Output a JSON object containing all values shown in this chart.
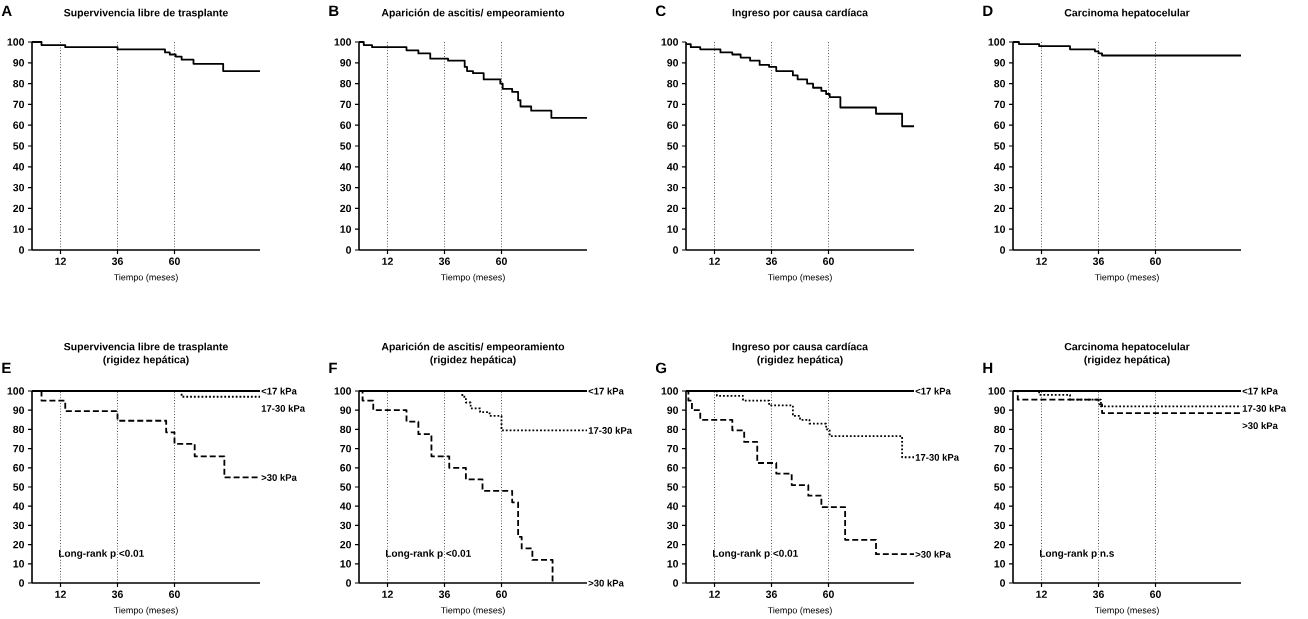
{
  "chart_data": [
    {
      "type": "step",
      "title": "Supervivencia libre de trasplante",
      "xlabel": "Tiempo (meses)",
      "annotations": [
        "A"
      ],
      "xlim": [
        0,
        96
      ],
      "ylim": [
        0,
        100
      ],
      "xticks": [
        12,
        36,
        60
      ],
      "yticks": [
        0,
        10,
        20,
        30,
        40,
        50,
        60,
        70,
        80,
        90,
        100
      ],
      "ref_lines": [
        {
          "axis": "x",
          "value": 12,
          "line_style": "dotted"
        },
        {
          "axis": "x",
          "value": 36,
          "line_style": "dotted"
        },
        {
          "axis": "x",
          "value": 60,
          "line_style": "dotted"
        }
      ],
      "series": [
        {
          "color": "#000000",
          "line_style": "solid",
          "x": [
            0,
            4,
            14,
            36,
            56,
            58,
            60.5,
            63,
            68,
            80.5,
            96
          ],
          "values": [
            100,
            98.5,
            97.5,
            96.5,
            95,
            94,
            93,
            91.5,
            89.5,
            86,
            86
          ]
        }
      ]
    },
    {
      "type": "step",
      "title": "Aparición de ascitis/ empeoramiento",
      "xlabel": "Tiempo (meses)",
      "annotations": [
        "B"
      ],
      "xlim": [
        0,
        96
      ],
      "ylim": [
        0,
        100
      ],
      "xticks": [
        12,
        36,
        60
      ],
      "yticks": [
        0,
        10,
        20,
        30,
        40,
        50,
        60,
        70,
        80,
        90,
        100
      ],
      "ref_lines": [
        {
          "axis": "x",
          "value": 12,
          "line_style": "dotted"
        },
        {
          "axis": "x",
          "value": 36,
          "line_style": "dotted"
        },
        {
          "axis": "x",
          "value": 60,
          "line_style": "dotted"
        }
      ],
      "series": [
        {
          "color": "#000000",
          "line_style": "solid",
          "x": [
            0,
            2,
            5.5,
            20,
            25,
            30,
            37.5,
            44.5,
            45.5,
            48,
            52.5,
            59.5,
            60.5,
            64.5,
            67,
            68,
            72.5,
            81,
            96
          ],
          "values": [
            100,
            98.5,
            97.5,
            96,
            94.5,
            92,
            91,
            88,
            86,
            85,
            82,
            80,
            77.5,
            76,
            72,
            69,
            67,
            63.5,
            63.5
          ]
        }
      ]
    },
    {
      "type": "step",
      "title": "Ingreso por causa cardíaca",
      "xlabel": "Tiempo (meses)",
      "annotations": [
        "C"
      ],
      "xlim": [
        0,
        96
      ],
      "ylim": [
        0,
        100
      ],
      "xticks": [
        12,
        36,
        60
      ],
      "yticks": [
        0,
        10,
        20,
        30,
        40,
        50,
        60,
        70,
        80,
        90,
        100
      ],
      "ref_lines": [
        {
          "axis": "x",
          "value": 12,
          "line_style": "dotted"
        },
        {
          "axis": "x",
          "value": 36,
          "line_style": "dotted"
        },
        {
          "axis": "x",
          "value": 60,
          "line_style": "dotted"
        }
      ],
      "series": [
        {
          "color": "#000000",
          "line_style": "solid",
          "x": [
            0,
            2,
            6,
            14.5,
            19.5,
            23,
            27,
            31,
            35,
            38,
            45,
            47,
            51,
            53.5,
            57,
            59,
            60.5,
            65,
            80,
            91,
            96
          ],
          "values": [
            99,
            97.5,
            96.5,
            95,
            94,
            92.5,
            91,
            89,
            88,
            86,
            84,
            82,
            80,
            78,
            76.5,
            75,
            73.5,
            68.5,
            65.5,
            59.5,
            59.5
          ]
        }
      ]
    },
    {
      "type": "step",
      "title": "Carcinoma hepatocelular",
      "xlabel": "Tiempo (meses)",
      "annotations": [
        "D"
      ],
      "xlim": [
        0,
        96
      ],
      "ylim": [
        0,
        100
      ],
      "xticks": [
        12,
        36,
        60
      ],
      "yticks": [
        0,
        10,
        20,
        30,
        40,
        50,
        60,
        70,
        80,
        90,
        100
      ],
      "ref_lines": [
        {
          "axis": "x",
          "value": 12,
          "line_style": "dotted"
        },
        {
          "axis": "x",
          "value": 36,
          "line_style": "dotted"
        },
        {
          "axis": "x",
          "value": 60,
          "line_style": "dotted"
        }
      ],
      "series": [
        {
          "color": "#000000",
          "line_style": "solid",
          "x": [
            0,
            2.5,
            11,
            24,
            34.5,
            36,
            37.5,
            96
          ],
          "values": [
            100,
            99,
            98,
            96.5,
            95.5,
            94.5,
            93.5,
            93.5
          ]
        }
      ]
    },
    {
      "type": "step",
      "title": "Supervivencia libre de trasplante",
      "subtitle": "(rigidez hepática)",
      "xlabel": "Tiempo (meses)",
      "annotations": [
        "E",
        "Long-rank p <0.01"
      ],
      "xlim": [
        0,
        96
      ],
      "ylim": [
        0,
        100
      ],
      "xticks": [
        12,
        36,
        60
      ],
      "yticks": [
        0,
        10,
        20,
        30,
        40,
        50,
        60,
        70,
        80,
        90,
        100
      ],
      "ref_lines": [
        {
          "axis": "x",
          "value": 12,
          "line_style": "dotted"
        },
        {
          "axis": "x",
          "value": 36,
          "line_style": "dotted"
        },
        {
          "axis": "x",
          "value": 60,
          "line_style": "dotted"
        }
      ],
      "series": [
        {
          "name": "<17 kPa",
          "color": "#000000",
          "line_style": "solid",
          "x": [
            0,
            96
          ],
          "values": [
            100,
            100
          ]
        },
        {
          "name": "17-30 kPa",
          "color": "#000000",
          "line_style": "dotted",
          "x": [
            61,
            63,
            96
          ],
          "values": [
            100,
            97,
            97
          ]
        },
        {
          "name": ">30 kPa",
          "color": "#000000",
          "line_style": "dashed",
          "x": [
            0,
            4,
            14,
            36,
            56.5,
            60,
            68.5,
            81,
            96
          ],
          "values": [
            100,
            95,
            89.5,
            84.5,
            78.5,
            72.5,
            66,
            55,
            55
          ]
        }
      ]
    },
    {
      "type": "step",
      "title": "Aparición de ascitis/ empeoramiento",
      "subtitle": "(rigidez hepática)",
      "xlabel": "Tiempo (meses)",
      "annotations": [
        "F",
        "Long-rank p <0.01"
      ],
      "xlim": [
        0,
        96
      ],
      "ylim": [
        0,
        100
      ],
      "xticks": [
        12,
        36,
        60
      ],
      "yticks": [
        0,
        10,
        20,
        30,
        40,
        50,
        60,
        70,
        80,
        90,
        100
      ],
      "ref_lines": [
        {
          "axis": "x",
          "value": 12,
          "line_style": "dotted"
        },
        {
          "axis": "x",
          "value": 36,
          "line_style": "dotted"
        },
        {
          "axis": "x",
          "value": 60,
          "line_style": "dotted"
        }
      ],
      "series": [
        {
          "name": "<17 kPa",
          "color": "#000000",
          "line_style": "solid",
          "x": [
            0,
            96
          ],
          "values": [
            100,
            100
          ]
        },
        {
          "name": "17-30 kPa",
          "color": "#000000",
          "line_style": "dotted",
          "x": [
            0,
            43.5,
            45,
            47,
            51,
            55,
            60,
            96
          ],
          "values": [
            100,
            97,
            94,
            91,
            89,
            87,
            79.5,
            79.5
          ]
        },
        {
          "name": ">30 kPa",
          "color": "#000000",
          "line_style": "dashed",
          "x": [
            0,
            1.5,
            6,
            20,
            25,
            30.5,
            38,
            45,
            52,
            64.5,
            67,
            68.5,
            73,
            81.5
          ],
          "values": [
            100,
            95,
            90,
            84,
            77.5,
            66,
            60,
            54,
            48,
            42,
            24,
            18,
            12,
            0
          ]
        }
      ]
    },
    {
      "type": "step",
      "title": "Ingreso por causa cardíaca",
      "subtitle": "(rigidez hepática)",
      "xlabel": "Tiempo (meses)",
      "annotations": [
        "G",
        "Long-rank p <0.01"
      ],
      "xlim": [
        0,
        96
      ],
      "ylim": [
        0,
        100
      ],
      "xticks": [
        12,
        36,
        60
      ],
      "yticks": [
        0,
        10,
        20,
        30,
        40,
        50,
        60,
        70,
        80,
        90,
        100
      ],
      "ref_lines": [
        {
          "axis": "x",
          "value": 12,
          "line_style": "dotted"
        },
        {
          "axis": "x",
          "value": 36,
          "line_style": "dotted"
        },
        {
          "axis": "x",
          "value": 60,
          "line_style": "dotted"
        }
      ],
      "series": [
        {
          "name": "<17 kPa",
          "color": "#000000",
          "line_style": "solid",
          "x": [
            0,
            96
          ],
          "values": [
            100,
            100
          ]
        },
        {
          "name": "17-30 kPa",
          "color": "#000000",
          "line_style": "dotted",
          "x": [
            0,
            13,
            24,
            35,
            45,
            48,
            52,
            59,
            60.5,
            91,
            96
          ],
          "values": [
            100,
            97.5,
            95,
            92.5,
            87,
            85,
            83,
            80,
            76.5,
            65.5,
            65.5
          ]
        },
        {
          "name": ">30 kPa",
          "color": "#000000",
          "line_style": "dashed",
          "x": [
            0,
            1,
            2.5,
            6,
            19.5,
            24.5,
            30,
            38,
            44.5,
            51.5,
            57,
            67,
            80,
            96
          ],
          "values": [
            100,
            95,
            90,
            85,
            79.5,
            73.5,
            62.5,
            57,
            51,
            45.5,
            39.5,
            22.5,
            15,
            15
          ]
        }
      ]
    },
    {
      "type": "step",
      "title": "Carcinoma hepatocelular",
      "subtitle": "(rigidez hepática)",
      "xlabel": "Tiempo (meses)",
      "annotations": [
        "H",
        "Long-rank p n.s"
      ],
      "xlim": [
        0,
        96
      ],
      "ylim": [
        0,
        100
      ],
      "xticks": [
        12,
        36,
        60
      ],
      "yticks": [
        0,
        10,
        20,
        30,
        40,
        50,
        60,
        70,
        80,
        90,
        100
      ],
      "ref_lines": [
        {
          "axis": "x",
          "value": 12,
          "line_style": "dotted"
        },
        {
          "axis": "x",
          "value": 36,
          "line_style": "dotted"
        },
        {
          "axis": "x",
          "value": 60,
          "line_style": "dotted"
        }
      ],
      "series": [
        {
          "name": "<17 kPa",
          "color": "#000000",
          "line_style": "solid",
          "x": [
            0,
            96
          ],
          "values": [
            100,
            100
          ]
        },
        {
          "name": "17-30 kPa",
          "color": "#000000",
          "line_style": "dotted",
          "x": [
            0,
            11,
            24,
            37,
            96
          ],
          "values": [
            100,
            98,
            95.5,
            92,
            92
          ]
        },
        {
          "name": ">30 kPa",
          "color": "#000000",
          "line_style": "dashed",
          "x": [
            0,
            2,
            36,
            37.5,
            96
          ],
          "values": [
            100,
            95.5,
            93,
            88.5,
            88.5
          ]
        }
      ]
    }
  ]
}
